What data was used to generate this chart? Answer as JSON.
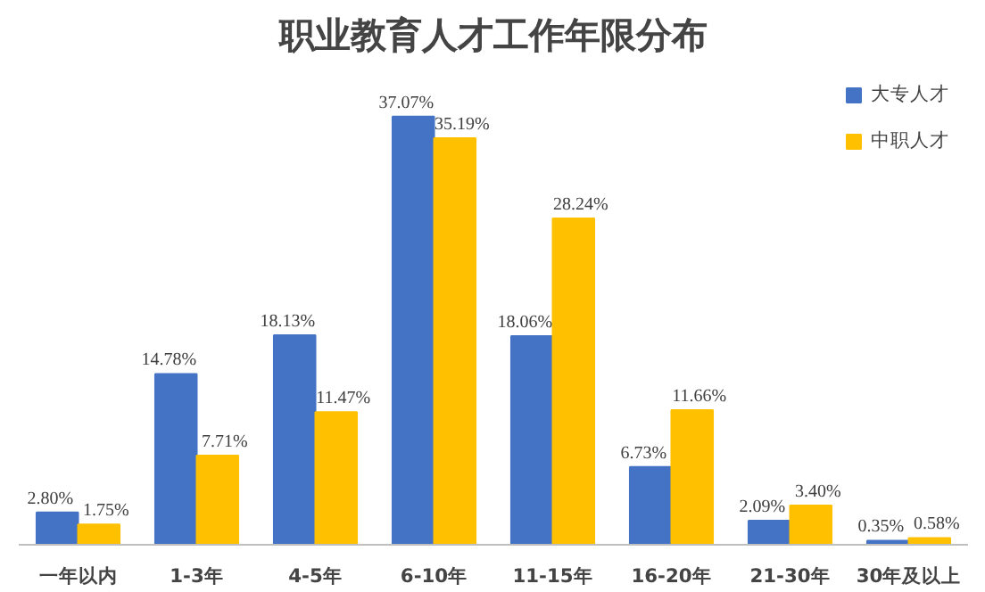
{
  "chart_data": {
    "type": "bar",
    "title": "职业教育人才工作年限分布",
    "categories": [
      "一年以内",
      "1-3年",
      "4-5年",
      "6-10年",
      "11-15年",
      "16-20年",
      "21-30年",
      "30年及以上"
    ],
    "series": [
      {
        "name": "大专人才",
        "color": "#4472c4",
        "values": [
          2.8,
          14.78,
          18.13,
          37.07,
          18.06,
          6.73,
          2.09,
          0.35
        ],
        "value_labels": [
          "2.80%",
          "14.78%",
          "18.13%",
          "37.07%",
          "18.06%",
          "6.73%",
          "2.09%",
          "0.35%"
        ]
      },
      {
        "name": "中职人才",
        "color": "#ffc000",
        "values": [
          1.75,
          7.71,
          11.47,
          35.19,
          28.24,
          11.66,
          3.4,
          0.58
        ],
        "value_labels": [
          "1.75%",
          "7.71%",
          "11.47%",
          "35.19%",
          "28.24%",
          "11.66%",
          "3.40%",
          "0.58%"
        ]
      }
    ],
    "legend": "top right",
    "tick_labels": "x"
  }
}
